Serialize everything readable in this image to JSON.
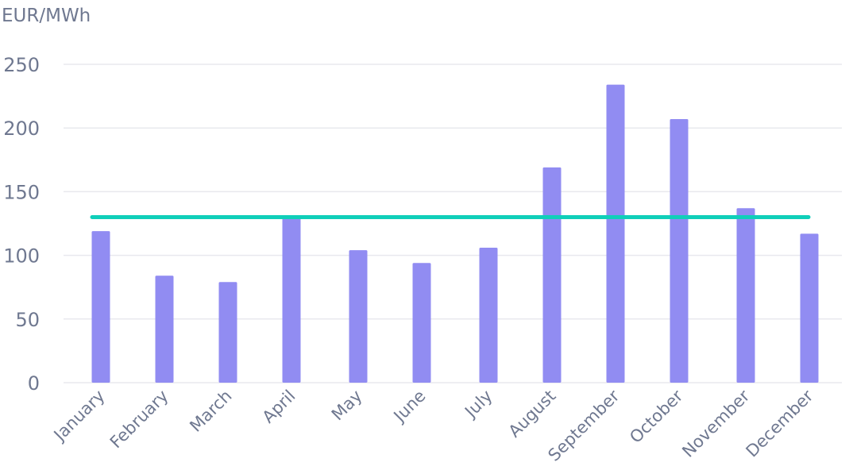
{
  "chart_data": {
    "type": "bar",
    "ylabel": "EUR/MWh",
    "xlabel": "",
    "title": "",
    "categories": [
      "January",
      "February",
      "March",
      "April",
      "May",
      "June",
      "July",
      "August",
      "September",
      "October",
      "November",
      "December"
    ],
    "values": [
      119,
      84,
      79,
      131,
      104,
      94,
      106,
      169,
      234,
      207,
      137,
      117
    ],
    "reference_line": {
      "value": 130
    },
    "ylim": [
      0,
      250
    ],
    "yticks": [
      0,
      50,
      100,
      150,
      200,
      250
    ],
    "grid": true,
    "legend": "none",
    "colors": {
      "bar": "#918cf2",
      "line": "#10cfb9",
      "text": "#6f7890",
      "grid": "#e8e9ee"
    }
  }
}
